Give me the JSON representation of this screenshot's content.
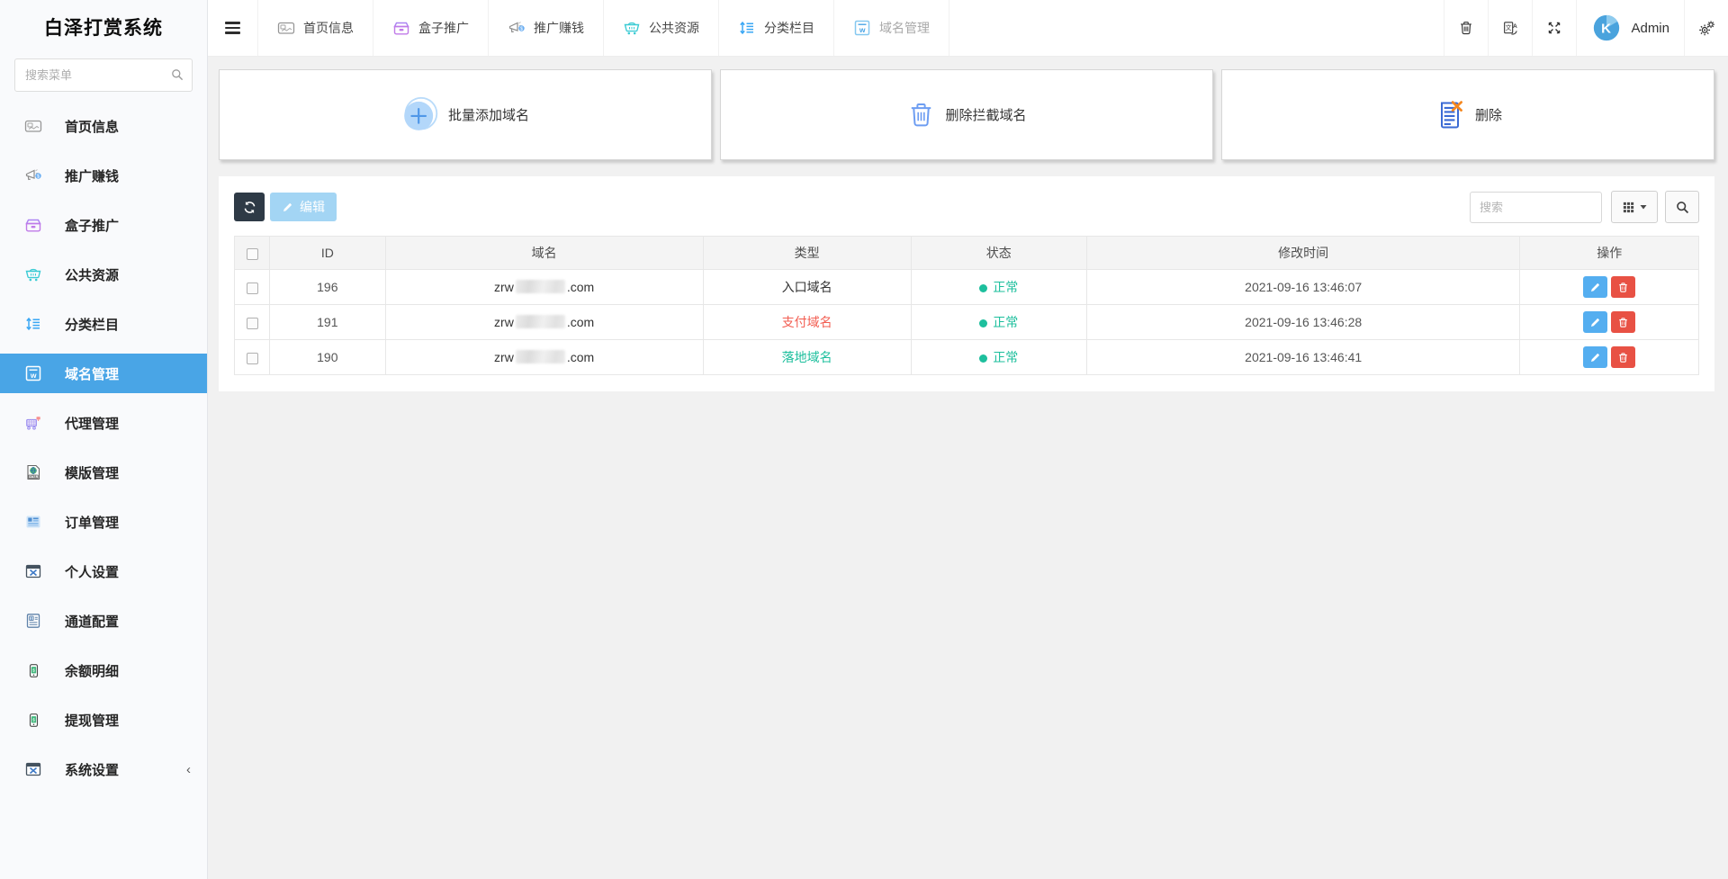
{
  "app": {
    "title": "白泽打赏系统"
  },
  "sidebar": {
    "search_placeholder": "搜索菜单",
    "items": [
      {
        "key": "home-info",
        "label": "首页信息",
        "icon": "home-info-icon"
      },
      {
        "key": "promote-earn",
        "label": "推广赚钱",
        "icon": "megaphone-icon"
      },
      {
        "key": "box-promote",
        "label": "盒子推广",
        "icon": "box-icon"
      },
      {
        "key": "public-resource",
        "label": "公共资源",
        "icon": "cart-icon"
      },
      {
        "key": "category",
        "label": "分类栏目",
        "icon": "sort-icon"
      },
      {
        "key": "domain-manage",
        "label": "域名管理",
        "icon": "domain-icon",
        "active": true
      },
      {
        "key": "agent-manage",
        "label": "代理管理",
        "icon": "trolley-icon"
      },
      {
        "key": "template-manage",
        "label": "模版管理",
        "icon": "html-doc-icon"
      },
      {
        "key": "order-manage",
        "label": "订单管理",
        "icon": "order-board-icon"
      },
      {
        "key": "personal-settings",
        "label": "个人设置",
        "icon": "window-tools-icon"
      },
      {
        "key": "channel-config",
        "label": "通道配置",
        "icon": "invoice-icon"
      },
      {
        "key": "balance-detail",
        "label": "余额明细",
        "icon": "phone-dollar-icon"
      },
      {
        "key": "withdraw-manage",
        "label": "提现管理",
        "icon": "phone-dollar-icon"
      },
      {
        "key": "system-settings",
        "label": "系统设置",
        "icon": "window-tools-icon",
        "has_submenu": true,
        "collapse_glyph": "‹"
      }
    ]
  },
  "topnav": {
    "tabs": [
      {
        "key": "home-info",
        "label": "首页信息",
        "icon": "home-info-icon"
      },
      {
        "key": "box-promote",
        "label": "盒子推广",
        "icon": "box-icon"
      },
      {
        "key": "promote-earn",
        "label": "推广赚钱",
        "icon": "megaphone-icon"
      },
      {
        "key": "public-resource",
        "label": "公共资源",
        "icon": "cart-icon"
      },
      {
        "key": "category",
        "label": "分类栏目",
        "icon": "sort-icon"
      },
      {
        "key": "domain-manage",
        "label": "域名管理",
        "icon": "domain-icon",
        "active": true
      }
    ],
    "right_buttons": [
      {
        "key": "trash",
        "icon": "trash-icon"
      },
      {
        "key": "translate",
        "icon": "translate-icon"
      },
      {
        "key": "fullscreen",
        "icon": "fullscreen-icon"
      }
    ],
    "user": {
      "name": "Admin",
      "avatar_icon": "avatar-logo"
    },
    "settings_icon": "gears-icon"
  },
  "cards": [
    {
      "key": "batch-add-domain",
      "label": "批量添加域名",
      "icon": "plus-circle-icon"
    },
    {
      "key": "delete-intercepted-domain",
      "label": "删除拦截域名",
      "icon": "trash-blue-icon"
    },
    {
      "key": "delete",
      "label": "删除",
      "icon": "doc-x-icon"
    }
  ],
  "toolbar": {
    "refresh_icon": "refresh-icon",
    "edit_label": "编辑",
    "edit_icon": "pencil-icon",
    "search_placeholder": "搜索",
    "grid_icon": "grid-icon",
    "search_icon": "search-icon"
  },
  "table": {
    "headers": [
      "ID",
      "域名",
      "类型",
      "状态",
      "修改时间",
      "操作"
    ],
    "rows": [
      {
        "id": "196",
        "domain_prefix": "zrw",
        "domain_masked": true,
        "domain_suffix": ".com",
        "type": "入口域名",
        "type_color": "#333333",
        "status": "正常",
        "status_color": "#1dbf9d",
        "modified": "2021-09-16 13:46:07"
      },
      {
        "id": "191",
        "domain_prefix": "zrw",
        "domain_masked": true,
        "domain_suffix": ".com",
        "type": "支付域名",
        "type_color": "#f25e52",
        "status": "正常",
        "status_color": "#1dbf9d",
        "modified": "2021-09-16 13:46:28"
      },
      {
        "id": "190",
        "domain_prefix": "zrw",
        "domain_masked": true,
        "domain_suffix": ".com",
        "type": "落地域名",
        "type_color": "#1dbf9d",
        "status": "正常",
        "status_color": "#1dbf9d",
        "modified": "2021-09-16 13:46:41"
      }
    ],
    "row_actions": [
      {
        "key": "edit",
        "icon": "pencil-icon",
        "color": "#54aef0"
      },
      {
        "key": "delete",
        "icon": "trash-white-icon",
        "color": "#e85144"
      }
    ]
  },
  "colors": {
    "accent_blue": "#49a5e6",
    "status_green": "#1dbf9d",
    "type_red": "#f25e52",
    "dark_button": "#2e3a46",
    "edit_button_disabled": "#a3d5f4",
    "action_edit": "#54aef0",
    "action_delete": "#e85144"
  }
}
